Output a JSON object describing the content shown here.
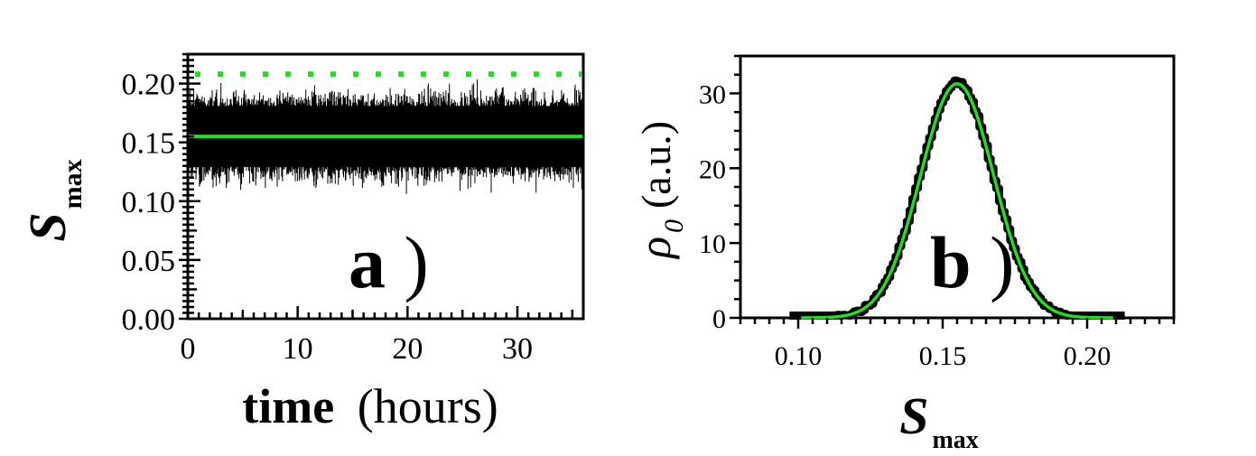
{
  "colors": {
    "trace": "#000000",
    "mean_line": "#22dd22",
    "threshold": "#22dd22",
    "fit": "#22dd22",
    "histogram": "#000000"
  },
  "chart_data": [
    {
      "panel": "a",
      "type": "line",
      "panel_label": "a",
      "panel_label_paren": ")",
      "xlabel_bold": "time",
      "xlabel_rest": "(hours)",
      "ylabel_main": "S",
      "ylabel_sub": "max",
      "xlim": [
        0,
        36
      ],
      "ylim": [
        0,
        0.225
      ],
      "xticks": [
        0,
        10,
        20,
        30
      ],
      "xtick_labels": [
        "0",
        "10",
        "20",
        "30"
      ],
      "yticks": [
        0.0,
        0.05,
        0.1,
        0.15,
        0.2
      ],
      "ytick_labels": [
        "0.00",
        "0.05",
        "0.10",
        "0.15",
        "0.20"
      ],
      "grid": false,
      "series": [
        {
          "role": "noisy trace",
          "mean": 0.155,
          "typical_min": 0.115,
          "typical_max": 0.195,
          "style": "black noise band"
        },
        {
          "role": "mean",
          "y": 0.155,
          "style": "solid green"
        },
        {
          "role": "threshold",
          "y": 0.208,
          "style": "dotted green"
        }
      ]
    },
    {
      "panel": "b",
      "type": "area",
      "panel_label": "b",
      "panel_label_paren": ")",
      "xlabel_main": "S",
      "xlabel_sub": "max",
      "ylabel_main": "ρ",
      "ylabel_sub": "0",
      "ylabel_rest": "(a.u.)",
      "xlim": [
        0.08,
        0.23
      ],
      "ylim": [
        0,
        35
      ],
      "xticks": [
        0.1,
        0.15,
        0.2
      ],
      "xtick_labels": [
        "0.10",
        "0.15",
        "0.20"
      ],
      "yticks": [
        0,
        10,
        20,
        30
      ],
      "ytick_labels": [
        "0",
        "10",
        "20",
        "30"
      ],
      "grid": false,
      "series": [
        {
          "role": "histogram",
          "x_range": [
            0.097,
            0.213
          ],
          "peak_x": 0.155,
          "peak_y": 31.5,
          "sigma": 0.0127,
          "style": "thick black stepped"
        },
        {
          "role": "gaussian fit",
          "peak_x": 0.155,
          "peak_y": 31.3,
          "sigma": 0.0127,
          "style": "solid green"
        }
      ]
    }
  ]
}
